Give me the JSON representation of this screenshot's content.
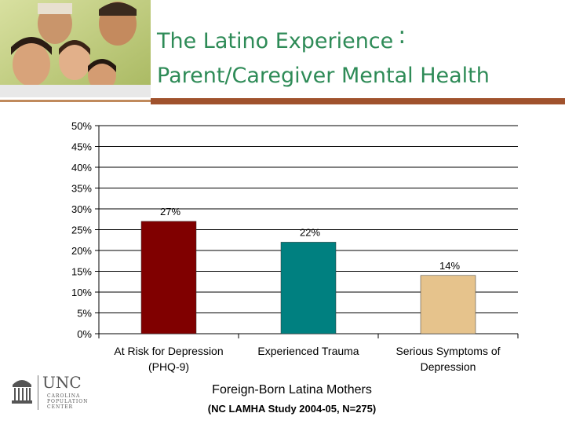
{
  "slide": {
    "title_line1": "The Latino Experience",
    "title_colon": ":",
    "title_line2": "Parent/Caregiver Mental Health",
    "title_color": "#2e8b57",
    "accent_bar_color": "#a0522d"
  },
  "logo": {
    "name": "UNC",
    "subline1": "CAROLINA",
    "subline2": "POPULATION",
    "subline3": "CENTER"
  },
  "chart_data": {
    "type": "bar",
    "categories": [
      [
        "At Risk for Depression",
        "(PHQ-9)"
      ],
      [
        "Experienced Trauma"
      ],
      [
        "Serious Symptoms of",
        "Depression"
      ]
    ],
    "values": [
      27,
      22,
      14
    ],
    "value_labels": [
      "27%",
      "22%",
      "14%"
    ],
    "colors": [
      "#800000",
      "#008080",
      "#e6c38c"
    ],
    "y_ticks": [
      "0%",
      "5%",
      "10%",
      "15%",
      "20%",
      "25%",
      "30%",
      "35%",
      "40%",
      "45%",
      "50%"
    ],
    "ylim": [
      0,
      50
    ],
    "grid": true,
    "title": "Foreign-Born Latina Mothers",
    "subtitle": "(NC LAMHA  Study 2004-05, N=275)"
  }
}
